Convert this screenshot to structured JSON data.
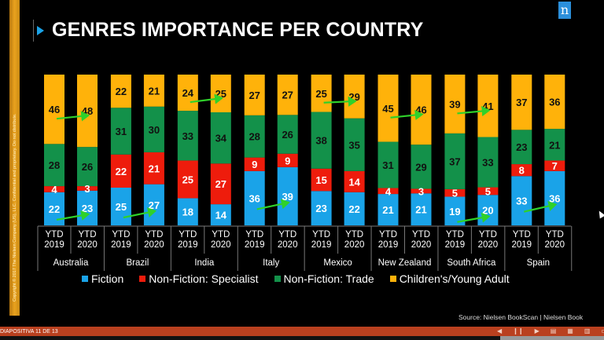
{
  "slide": {
    "title": "GENRES IMPORTANCE PER COUNTRY",
    "logo_letter": "n",
    "copyright": "Copyright © 2017 The Nielsen Company (US), LLC. Confidential and proprietary. Do not distribute.",
    "source": "Source: Nielsen BookScan | Nielsen Book"
  },
  "statusbar": {
    "slide_info": "DIAPOSITIVA 11 DE 13",
    "icons": [
      "prev-icon",
      "pause-icon",
      "next-icon",
      "notes-icon",
      "grid-icon",
      "reading-view-icon",
      "presenter-icon"
    ]
  },
  "colors": {
    "fiction": "#1aa3e8",
    "specialist": "#ee1c0c",
    "trade": "#13914a",
    "children": "#ffb20a",
    "arrow": "#2fd12a"
  },
  "chart_data": {
    "type": "bar",
    "stacked": true,
    "title": "GENRES IMPORTANCE PER COUNTRY",
    "xlabel": "",
    "ylabel": "",
    "ylim": [
      0,
      100
    ],
    "legend_position": "bottom",
    "groups": [
      "Australia",
      "Brazil",
      "India",
      "Italy",
      "Mexico",
      "New Zealand",
      "South Africa",
      "Spain"
    ],
    "period_labels": [
      "YTD 2019",
      "YTD 2020"
    ],
    "categories": [
      "Australia YTD 2019",
      "Australia YTD 2020",
      "Brazil YTD 2019",
      "Brazil YTD 2020",
      "India YTD 2019",
      "India YTD 2020",
      "Italy YTD 2019",
      "Italy YTD 2020",
      "Mexico YTD 2019",
      "Mexico YTD 2020",
      "New Zealand YTD 2019",
      "New Zealand YTD 2020",
      "South Africa YTD 2019",
      "South Africa YTD 2020",
      "Spain YTD 2019",
      "Spain YTD 2020"
    ],
    "series": [
      {
        "name": "Fiction",
        "key": "fiction",
        "values": [
          22,
          23,
          25,
          27,
          18,
          14,
          36,
          39,
          23,
          22,
          21,
          21,
          19,
          20,
          33,
          36
        ]
      },
      {
        "name": "Non-Fiction: Specialist",
        "key": "specialist",
        "values": [
          4,
          3,
          22,
          21,
          25,
          27,
          9,
          9,
          15,
          14,
          4,
          3,
          5,
          5,
          8,
          7
        ]
      },
      {
        "name": "Non-Fiction: Trade",
        "key": "trade",
        "values": [
          28,
          26,
          31,
          30,
          33,
          34,
          28,
          26,
          38,
          35,
          31,
          29,
          37,
          33,
          23,
          21
        ]
      },
      {
        "name": "Children's/Young Adult",
        "key": "children",
        "values": [
          46,
          48,
          22,
          21,
          24,
          25,
          27,
          27,
          25,
          29,
          45,
          46,
          39,
          41,
          37,
          36
        ]
      }
    ],
    "annotations": [
      {
        "type": "arrow",
        "group": "Australia",
        "series": "Fiction"
      },
      {
        "type": "arrow",
        "group": "Australia",
        "series": "Children's/Young Adult"
      },
      {
        "type": "arrow",
        "group": "Brazil",
        "series": "Fiction"
      },
      {
        "type": "arrow",
        "group": "India",
        "series": "Children's/Young Adult"
      },
      {
        "type": "arrow",
        "group": "Italy",
        "series": "Fiction"
      },
      {
        "type": "arrow",
        "group": "Mexico",
        "series": "Children's/Young Adult"
      },
      {
        "type": "arrow",
        "group": "New Zealand",
        "series": "Children's/Young Adult"
      },
      {
        "type": "arrow",
        "group": "South Africa",
        "series": "Fiction"
      },
      {
        "type": "arrow",
        "group": "South Africa",
        "series": "Children's/Young Adult"
      },
      {
        "type": "arrow",
        "group": "Spain",
        "series": "Fiction"
      }
    ]
  }
}
